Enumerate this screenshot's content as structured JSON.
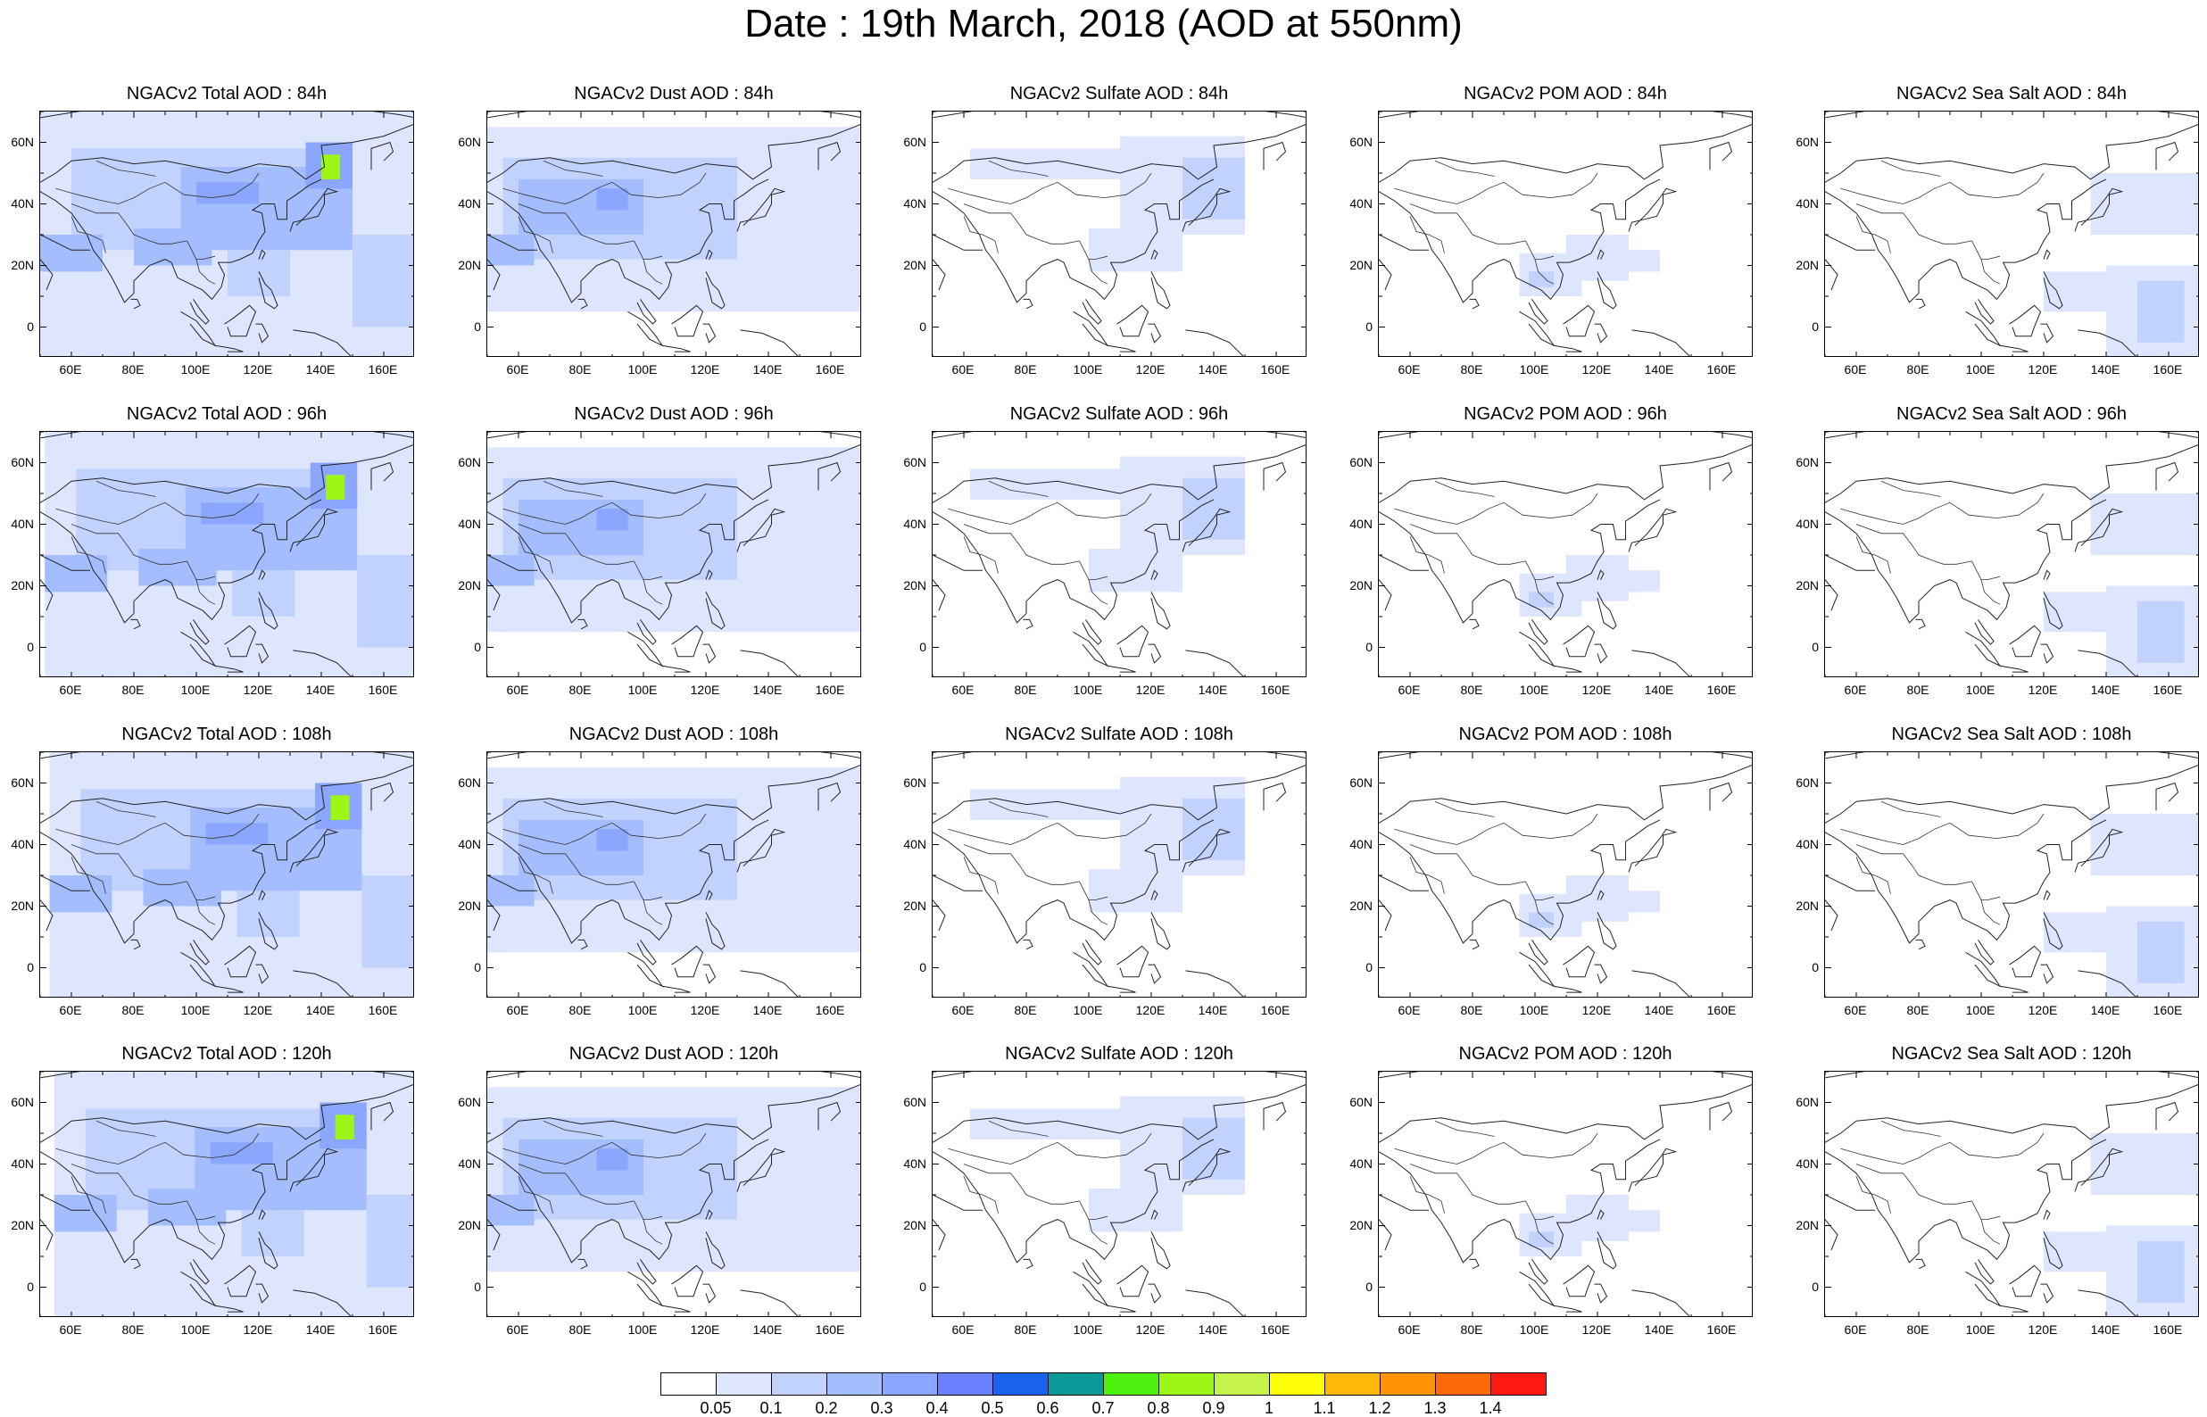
{
  "title": "Date : 19th March, 2018 (AOD at 550nm)",
  "longitude_ticks": [
    "60E",
    "80E",
    "100E",
    "120E",
    "140E",
    "160E"
  ],
  "latitude_ticks": [
    "60N",
    "40N",
    "20N",
    "0"
  ],
  "panels": [
    [
      "NGACv2 Total AOD : 84h",
      "NGACv2 Dust AOD : 84h",
      "NGACv2 Sulfate AOD : 84h",
      "NGACv2 POM AOD : 84h",
      "NGACv2 Sea Salt AOD : 84h"
    ],
    [
      "NGACv2 Total AOD : 96h",
      "NGACv2 Dust AOD : 96h",
      "NGACv2 Sulfate AOD : 96h",
      "NGACv2 POM AOD : 96h",
      "NGACv2 Sea Salt AOD : 96h"
    ],
    [
      "NGACv2 Total AOD : 108h",
      "NGACv2 Dust AOD : 108h",
      "NGACv2 Sulfate AOD : 108h",
      "NGACv2 POM AOD : 108h",
      "NGACv2 Sea Salt AOD : 108h"
    ],
    [
      "NGACv2 Total AOD : 120h",
      "NGACv2 Dust AOD : 120h",
      "NGACv2 Sulfate AOD : 120h",
      "NGACv2 POM AOD : 120h",
      "NGACv2 Sea Salt  AOD : 120h"
    ]
  ],
  "colorbar": {
    "labels": [
      "0.05",
      "0.1",
      "0.2",
      "0.3",
      "0.4",
      "0.5",
      "0.6",
      "0.7",
      "0.8",
      "0.9",
      "1",
      "1.1",
      "1.2",
      "1.3",
      "1.4"
    ],
    "colors": [
      "#ffffff",
      "#dde6fe",
      "#c1d2fe",
      "#a3bdfe",
      "#8aa6fe",
      "#6a7ffe",
      "#1a63ee",
      "#0a9a96",
      "#4cf20e",
      "#9cf716",
      "#c6f24c",
      "#fefe06",
      "#feb80a",
      "#fe9406",
      "#fe6a08",
      "#fe1a10"
    ]
  }
}
